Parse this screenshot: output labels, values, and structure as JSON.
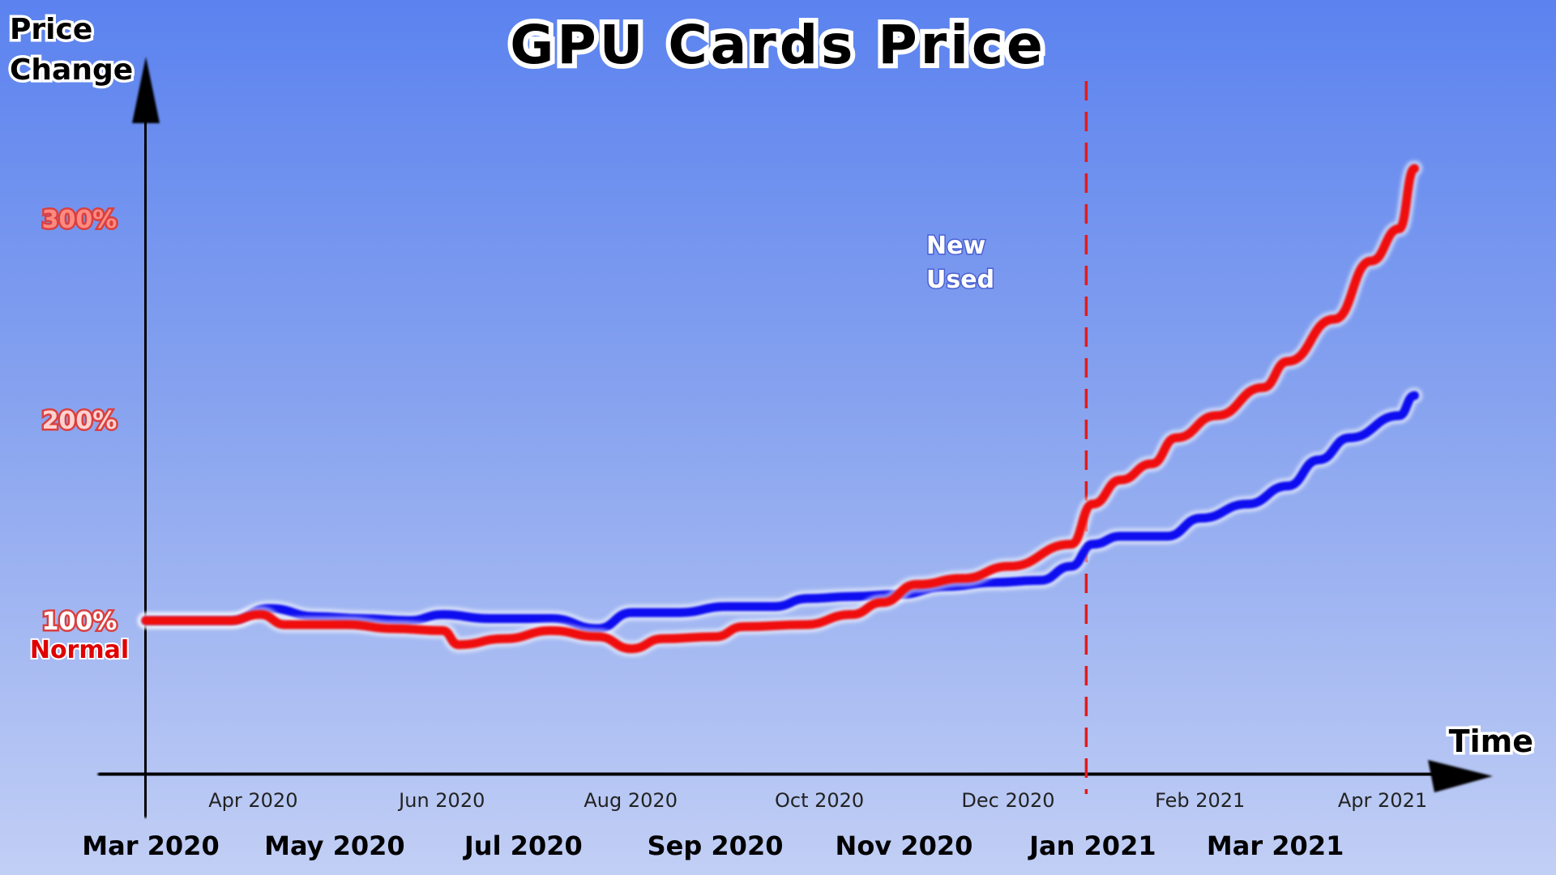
{
  "chart_data": {
    "type": "line",
    "title": "GPU Cards Price",
    "ylabel": "Price\nChange",
    "xlabel": "Time",
    "yticks": [
      {
        "value": 100,
        "label": "100%"
      },
      {
        "value": 200,
        "label": "200%"
      },
      {
        "value": 300,
        "label": "300%"
      }
    ],
    "baseline_label": "Normal",
    "ylim": [
      22,
      385
    ],
    "xlim": [
      "2020-03-01",
      "2021-05-01"
    ],
    "major_x_ticks": [
      {
        "date": "2020-03-01",
        "label": "Mar 2020"
      },
      {
        "date": "2020-05-01",
        "label": "May 2020"
      },
      {
        "date": "2020-07-01",
        "label": "Jul 2020"
      },
      {
        "date": "2020-09-01",
        "label": "Sep 2020"
      },
      {
        "date": "2020-11-01",
        "label": "Nov 2020"
      },
      {
        "date": "2021-01-01",
        "label": "Jan 2021"
      },
      {
        "date": "2021-03-01",
        "label": "Mar 2021"
      }
    ],
    "minor_x_ticks": [
      {
        "date": "2020-04-01",
        "label": "Apr 2020"
      },
      {
        "date": "2020-06-01",
        "label": "Jun 2020"
      },
      {
        "date": "2020-08-01",
        "label": "Aug 2020"
      },
      {
        "date": "2020-10-01",
        "label": "Oct 2020"
      },
      {
        "date": "2020-12-01",
        "label": "Dec 2020"
      },
      {
        "date": "2021-02-01",
        "label": "Feb 2021"
      },
      {
        "date": "2021-04-01",
        "label": "Apr 2021"
      }
    ],
    "reference_line": {
      "date": "2021-01-01",
      "color": "#e21b1b",
      "style": "dashed"
    },
    "legend_position": "top-center",
    "series": [
      {
        "name": "New",
        "color": "#1010f0",
        "points": [
          [
            "2020-03-01",
            100
          ],
          [
            "2020-03-28",
            100
          ],
          [
            "2020-04-10",
            106
          ],
          [
            "2020-04-25",
            102
          ],
          [
            "2020-05-10",
            101
          ],
          [
            "2020-05-25",
            100
          ],
          [
            "2020-06-05",
            103
          ],
          [
            "2020-06-20",
            101
          ],
          [
            "2020-07-01",
            101
          ],
          [
            "2020-07-10",
            101
          ],
          [
            "2020-07-25",
            96
          ],
          [
            "2020-08-05",
            104
          ],
          [
            "2020-08-20",
            104
          ],
          [
            "2020-09-05",
            107
          ],
          [
            "2020-09-20",
            107
          ],
          [
            "2020-10-01",
            111
          ],
          [
            "2020-10-15",
            112
          ],
          [
            "2020-10-30",
            113
          ],
          [
            "2020-11-15",
            117
          ],
          [
            "2020-11-30",
            119
          ],
          [
            "2020-12-15",
            120
          ],
          [
            "2020-12-25",
            127
          ],
          [
            "2021-01-01",
            138
          ],
          [
            "2021-01-10",
            142
          ],
          [
            "2021-01-25",
            142
          ],
          [
            "2021-02-05",
            151
          ],
          [
            "2021-02-20",
            158
          ],
          [
            "2021-03-05",
            167
          ],
          [
            "2021-03-15",
            180
          ],
          [
            "2021-03-25",
            191
          ],
          [
            "2021-04-10",
            202
          ],
          [
            "2021-04-15",
            212
          ]
        ]
      },
      {
        "name": "Used",
        "color": "#f01010",
        "points": [
          [
            "2020-03-01",
            100
          ],
          [
            "2020-03-28",
            100
          ],
          [
            "2020-04-07",
            103
          ],
          [
            "2020-04-15",
            98
          ],
          [
            "2020-05-05",
            98
          ],
          [
            "2020-05-20",
            96
          ],
          [
            "2020-06-05",
            95
          ],
          [
            "2020-06-10",
            88
          ],
          [
            "2020-06-25",
            91
          ],
          [
            "2020-07-10",
            95
          ],
          [
            "2020-07-25",
            92
          ],
          [
            "2020-08-05",
            86
          ],
          [
            "2020-08-15",
            91
          ],
          [
            "2020-09-01",
            92
          ],
          [
            "2020-09-10",
            97
          ],
          [
            "2020-09-30",
            98
          ],
          [
            "2020-10-15",
            103
          ],
          [
            "2020-10-25",
            109
          ],
          [
            "2020-11-05",
            118
          ],
          [
            "2020-11-20",
            121
          ],
          [
            "2020-12-05",
            127
          ],
          [
            "2020-12-25",
            138
          ],
          [
            "2021-01-01",
            158
          ],
          [
            "2021-01-10",
            170
          ],
          [
            "2021-01-20",
            178
          ],
          [
            "2021-01-28",
            191
          ],
          [
            "2021-02-10",
            202
          ],
          [
            "2021-02-25",
            216
          ],
          [
            "2021-03-05",
            229
          ],
          [
            "2021-03-20",
            250
          ],
          [
            "2021-04-01",
            279
          ],
          [
            "2021-04-10",
            295
          ],
          [
            "2021-04-15",
            325
          ]
        ]
      }
    ]
  }
}
